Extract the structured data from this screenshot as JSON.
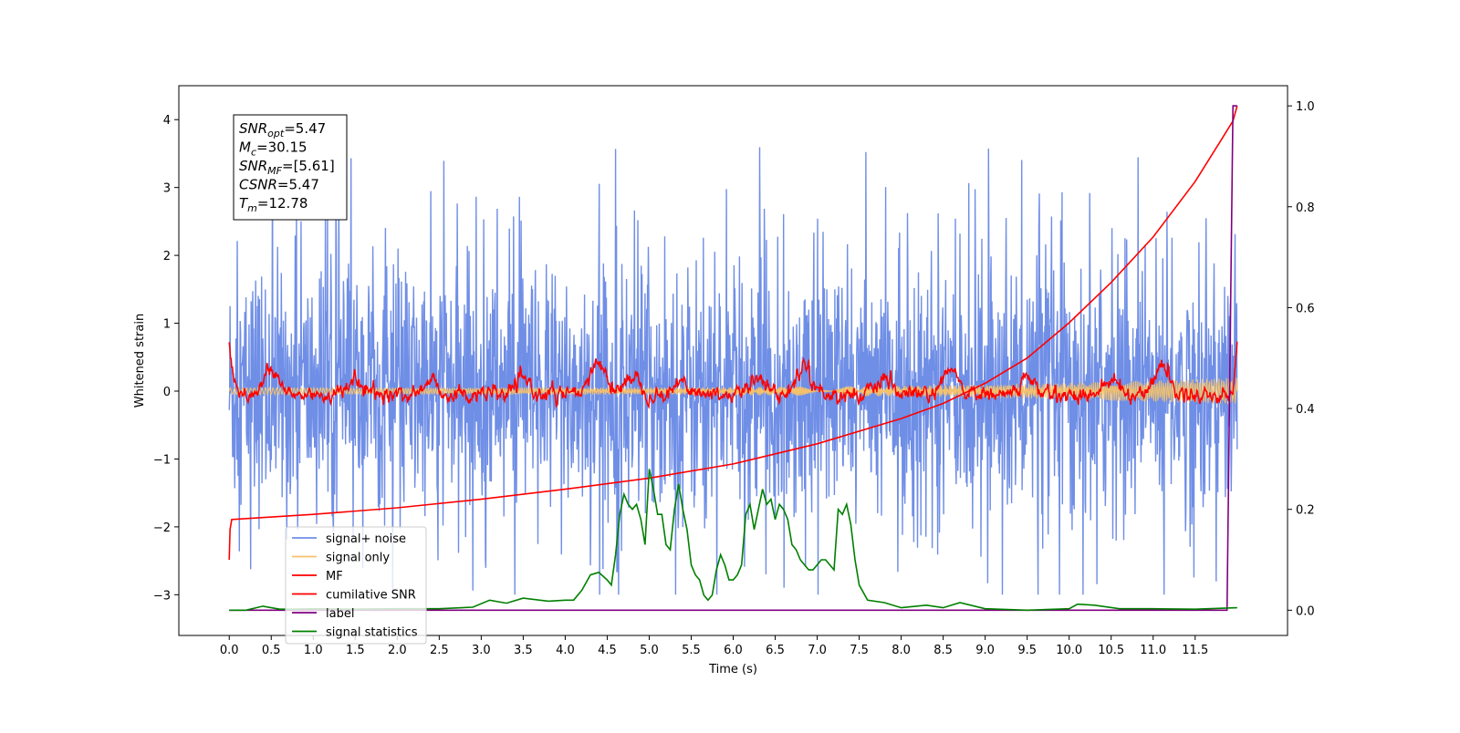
{
  "chart_data": {
    "type": "line",
    "xlabel": "Time (s)",
    "ylabel": "Whitened strain",
    "xlim": [
      -0.6,
      12.6
    ],
    "ylim": [
      -3.6,
      4.5
    ],
    "y2lim": [
      -0.05,
      1.04
    ],
    "x_ticks": [
      "0.0",
      "0.5",
      "1.0",
      "1.5",
      "2.0",
      "2.5",
      "3.0",
      "3.5",
      "4.0",
      "4.5",
      "5.0",
      "5.5",
      "6.0",
      "6.5",
      "7.0",
      "7.5",
      "8.0",
      "8.5",
      "9.0",
      "9.5",
      "10.0",
      "10.5",
      "11.0",
      "11.5"
    ],
    "y_ticks": [
      "4",
      "3",
      "2",
      "1",
      "0",
      "−1",
      "−2",
      "−3"
    ],
    "y2_ticks": [
      "1.0",
      "0.8",
      "0.6",
      "0.4",
      "0.2",
      "0.0"
    ],
    "grid": false,
    "legend_position": "lower-left",
    "annotation": [
      {
        "name": "SNR",
        "sub": "opt",
        "value": "=5.47"
      },
      {
        "name": "M",
        "sub": "c",
        "value": "=30.15"
      },
      {
        "name": "SNR",
        "sub": "MF",
        "value": "=[5.61]"
      },
      {
        "name": "CSNR",
        "sub": "",
        "value": "=5.47"
      },
      {
        "name": "T",
        "sub": "m",
        "value": "=12.78"
      }
    ],
    "series": [
      {
        "name": "signal+ noise",
        "color": "#6f8ee6",
        "axis": "left",
        "style": "noise",
        "x_range": [
          0,
          12
        ],
        "amplitude_range": [
          -3.0,
          4.15
        ]
      },
      {
        "name": "signal only",
        "color": "#f5c26b",
        "axis": "left",
        "style": "chirp",
        "x_range": [
          0,
          12
        ],
        "amplitude_range": [
          -0.5,
          0.5
        ]
      },
      {
        "name": "MF",
        "color": "#ff0000",
        "axis": "left",
        "style": "filtered",
        "x_range": [
          0,
          12
        ],
        "bumps": [
          [
            0.5,
            0.35
          ],
          [
            1.5,
            0.2
          ],
          [
            2.4,
            0.2
          ],
          [
            3.5,
            0.2
          ],
          [
            4.4,
            0.5
          ],
          [
            4.8,
            0.3
          ],
          [
            5.4,
            0.2
          ],
          [
            6.3,
            0.3
          ],
          [
            6.85,
            0.45
          ],
          [
            7.8,
            0.2
          ],
          [
            8.6,
            0.35
          ],
          [
            9.5,
            0.25
          ],
          [
            10.5,
            0.2
          ],
          [
            11.1,
            0.45
          ]
        ]
      },
      {
        "name": "cumilative SNR",
        "color": "#ff0000",
        "axis": "right",
        "x": [
          0.0,
          0.01,
          0.03,
          1.0,
          2.0,
          3.0,
          4.0,
          5.0,
          6.0,
          7.0,
          8.0,
          8.5,
          9.0,
          9.5,
          10.0,
          10.5,
          11.0,
          11.5,
          11.8,
          11.95,
          12.0
        ],
        "y": [
          0.1,
          0.16,
          0.18,
          0.19,
          0.203,
          0.22,
          0.24,
          0.262,
          0.29,
          0.33,
          0.38,
          0.41,
          0.45,
          0.5,
          0.57,
          0.65,
          0.74,
          0.85,
          0.93,
          0.97,
          1.0
        ]
      },
      {
        "name": "label",
        "color": "#800080",
        "axis": "right",
        "x": [
          0.0,
          11.88,
          11.95,
          11.96,
          12.0
        ],
        "y": [
          0.0,
          0.0,
          1.0,
          1.0,
          1.0
        ]
      },
      {
        "name": "signal statistics",
        "color": "#008000",
        "axis": "right",
        "x": [
          0.0,
          0.2,
          0.4,
          0.6,
          0.8,
          1.0,
          1.5,
          2.0,
          2.5,
          2.9,
          3.1,
          3.3,
          3.5,
          3.8,
          4.0,
          4.1,
          4.2,
          4.3,
          4.4,
          4.5,
          4.55,
          4.6,
          4.65,
          4.7,
          4.75,
          4.8,
          4.85,
          4.9,
          4.95,
          5.0,
          5.05,
          5.1,
          5.15,
          5.2,
          5.25,
          5.3,
          5.35,
          5.4,
          5.45,
          5.5,
          5.55,
          5.6,
          5.65,
          5.7,
          5.75,
          5.8,
          5.85,
          5.9,
          5.95,
          6.0,
          6.05,
          6.1,
          6.15,
          6.2,
          6.25,
          6.3,
          6.35,
          6.4,
          6.45,
          6.5,
          6.55,
          6.6,
          6.65,
          6.7,
          6.75,
          6.8,
          6.85,
          6.9,
          6.95,
          7.0,
          7.05,
          7.1,
          7.15,
          7.2,
          7.25,
          7.3,
          7.35,
          7.4,
          7.45,
          7.5,
          7.6,
          7.8,
          8.0,
          8.3,
          8.5,
          8.7,
          9.0,
          9.5,
          10.0,
          10.1,
          10.3,
          10.6,
          11.0,
          11.5,
          12.0
        ],
        "y": [
          0.0,
          0.0,
          0.008,
          0.002,
          0.002,
          0.003,
          0.002,
          0.003,
          0.003,
          0.006,
          0.02,
          0.014,
          0.024,
          0.018,
          0.02,
          0.02,
          0.04,
          0.07,
          0.075,
          0.06,
          0.05,
          0.11,
          0.19,
          0.23,
          0.21,
          0.2,
          0.21,
          0.18,
          0.13,
          0.28,
          0.24,
          0.19,
          0.19,
          0.13,
          0.12,
          0.2,
          0.25,
          0.2,
          0.16,
          0.09,
          0.07,
          0.06,
          0.03,
          0.02,
          0.03,
          0.08,
          0.11,
          0.09,
          0.06,
          0.06,
          0.07,
          0.09,
          0.19,
          0.21,
          0.16,
          0.2,
          0.24,
          0.21,
          0.22,
          0.18,
          0.21,
          0.2,
          0.18,
          0.13,
          0.12,
          0.1,
          0.09,
          0.08,
          0.08,
          0.09,
          0.1,
          0.1,
          0.09,
          0.08,
          0.2,
          0.19,
          0.21,
          0.17,
          0.1,
          0.05,
          0.02,
          0.015,
          0.005,
          0.01,
          0.005,
          0.015,
          0.003,
          0.0,
          0.003,
          0.012,
          0.01,
          0.003,
          0.003,
          0.002,
          0.005
        ]
      }
    ]
  }
}
